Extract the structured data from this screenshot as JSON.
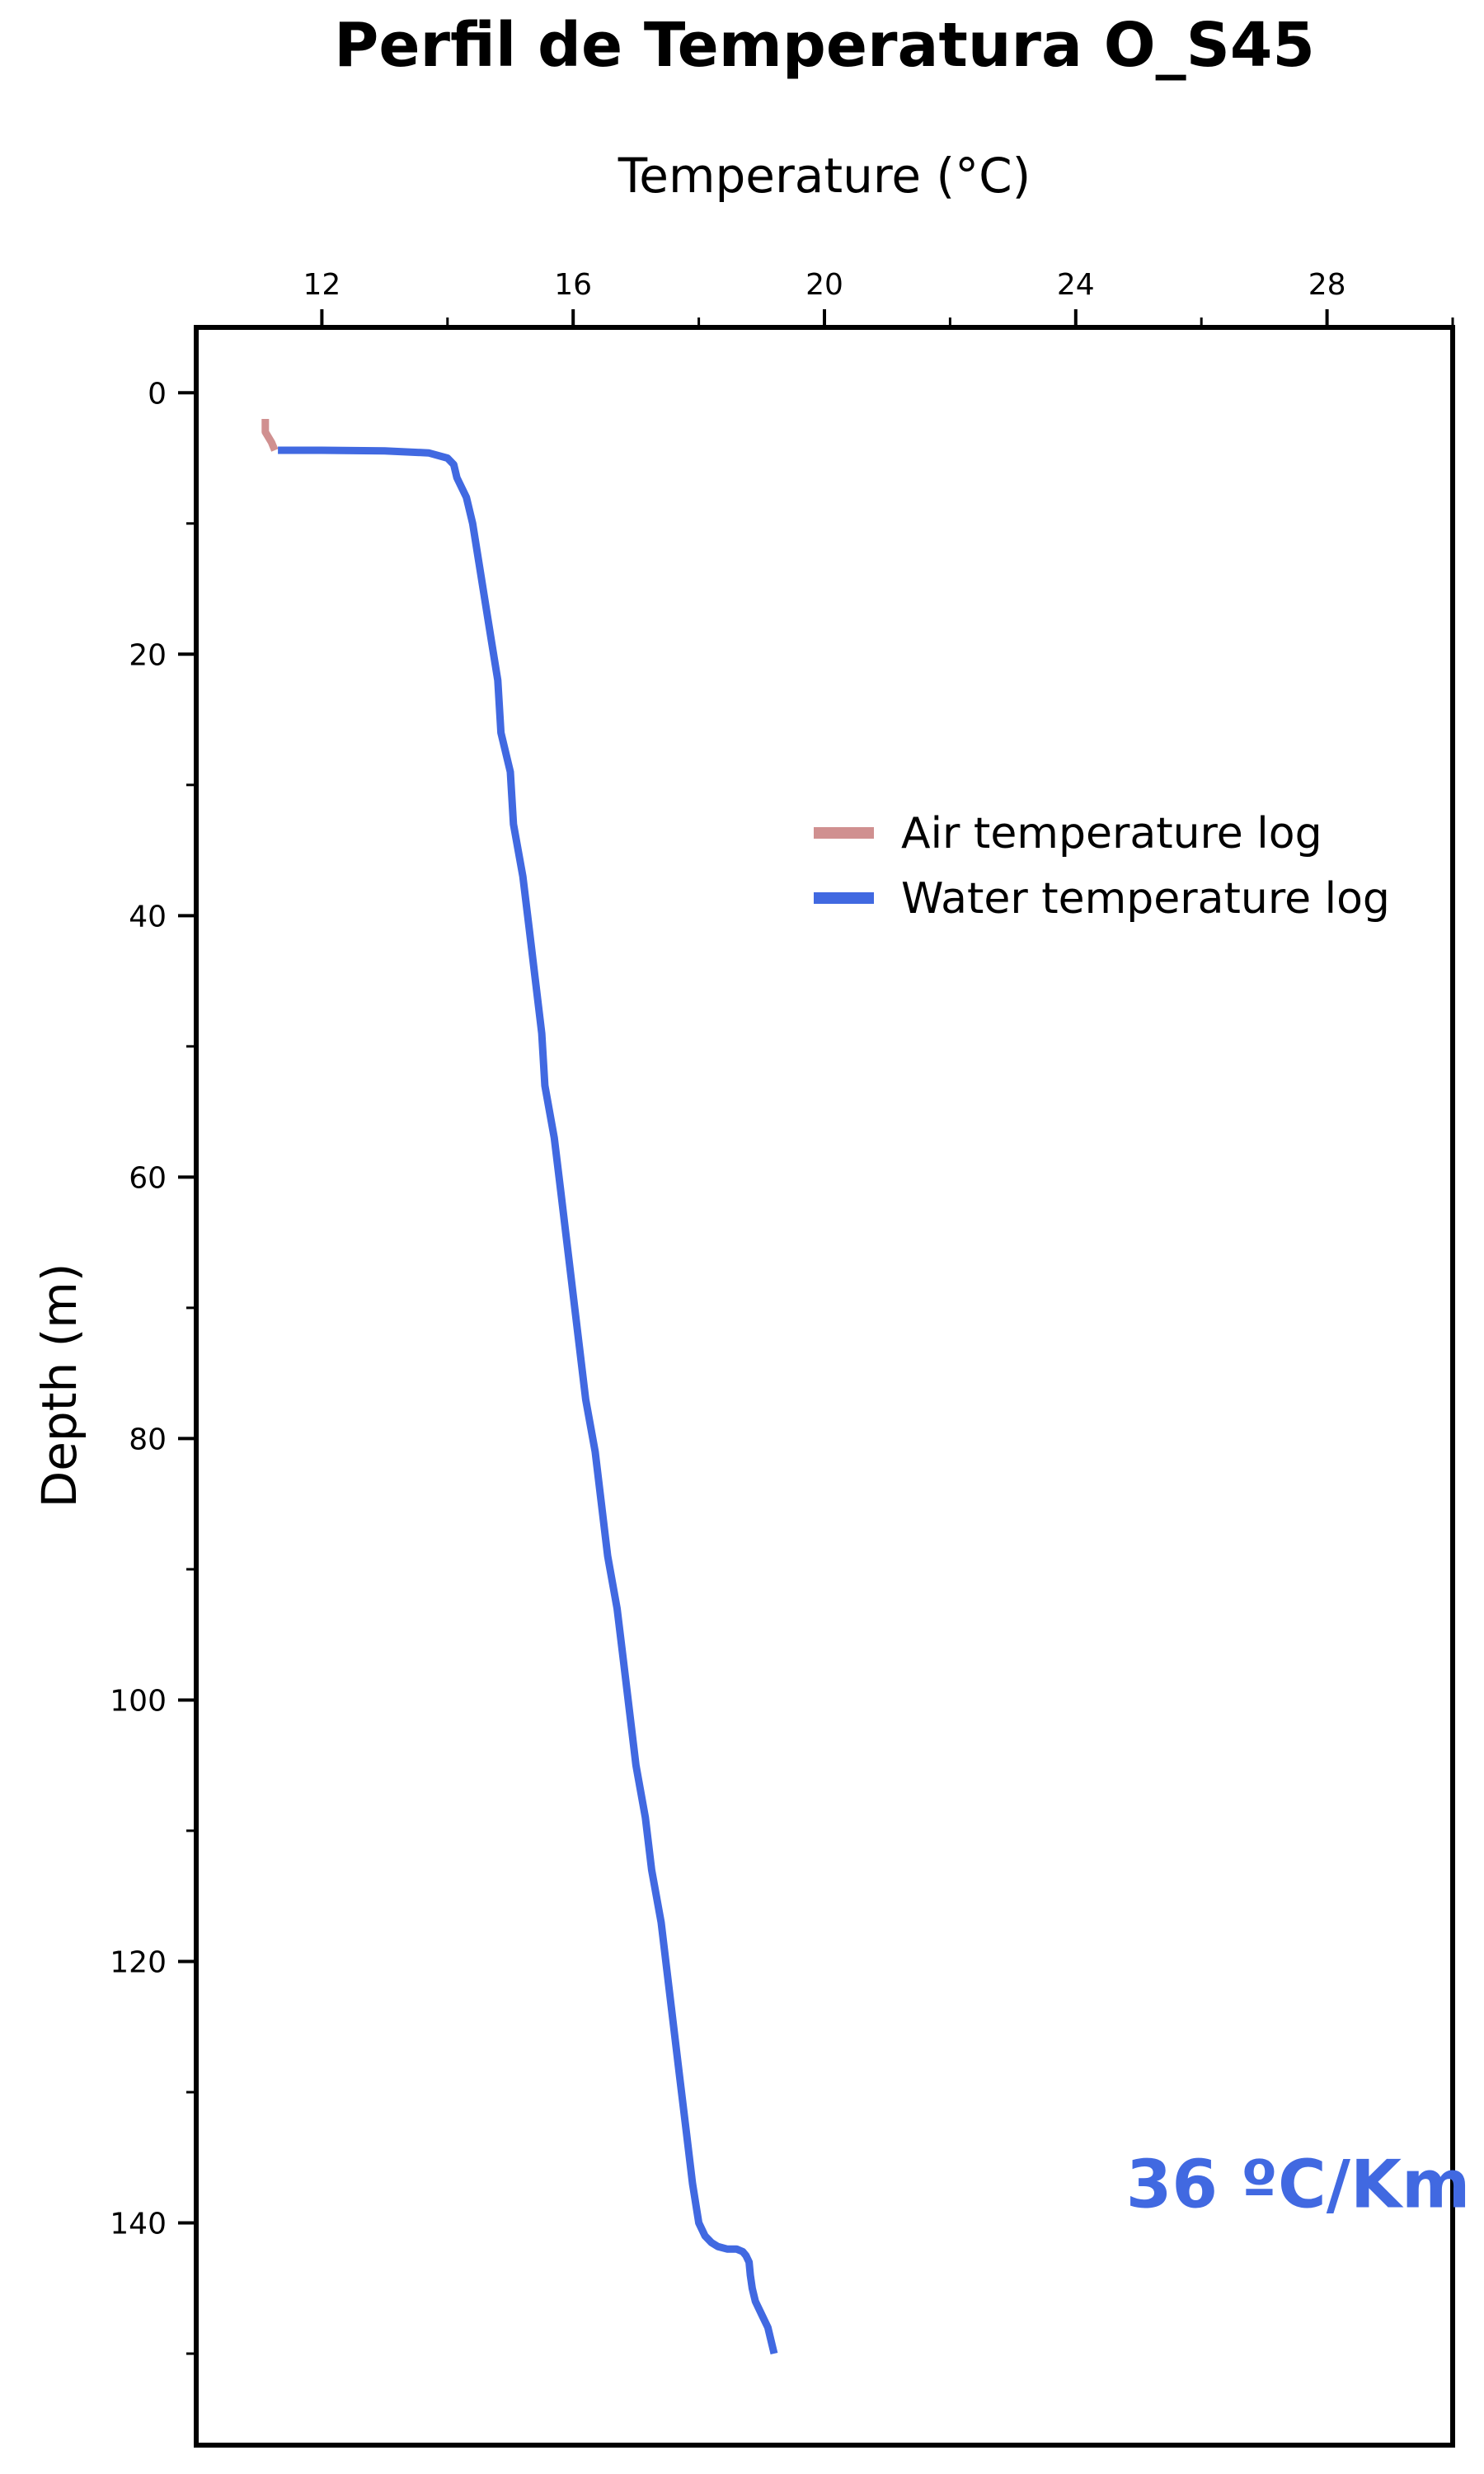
{
  "chart_data": {
    "type": "line",
    "title": "Perfil de Temperatura O_S45",
    "xlabel": "Temperature (°C)",
    "ylabel": "Depth (m)",
    "xlim": [
      10,
      30
    ],
    "ylim": [
      157,
      -5
    ],
    "y_inverted": true,
    "x_axis_position": "top",
    "xticks": [
      12,
      16,
      20,
      24,
      28
    ],
    "xticks_minor": [
      14,
      18,
      22,
      26,
      30
    ],
    "yticks": [
      0,
      20,
      40,
      60,
      80,
      100,
      120,
      140
    ],
    "yticks_minor": [
      10,
      30,
      50,
      70,
      90,
      110,
      130,
      150
    ],
    "grid": false,
    "legend_position": "upper-right",
    "annotation": {
      "text": "36 ºC/Km",
      "x": 24.8,
      "y": 138.8,
      "color": "#4169e1"
    },
    "series": [
      {
        "name": "Air temperature log",
        "color": "#d09090",
        "x": [
          11.1,
          11.1,
          11.2,
          11.25
        ],
        "y": [
          2.0,
          3.0,
          3.8,
          4.4
        ]
      },
      {
        "name": "Water temperature log",
        "color": "#4169e1",
        "x": [
          11.3,
          12.0,
          13.0,
          13.7,
          14.0,
          14.1,
          14.15,
          14.3,
          14.4,
          14.5,
          14.6,
          14.7,
          14.8,
          14.85,
          15.0,
          15.05,
          15.2,
          15.3,
          15.4,
          15.5,
          15.55,
          15.7,
          15.8,
          15.9,
          16.0,
          16.1,
          16.2,
          16.35,
          16.45,
          16.55,
          16.7,
          16.8,
          16.9,
          17.0,
          17.15,
          17.25,
          17.4,
          17.5,
          17.6,
          17.7,
          17.8,
          17.9,
          18.0,
          18.1,
          18.2,
          18.3,
          18.45,
          18.6,
          18.7,
          18.75,
          18.8,
          18.82,
          18.85,
          18.9,
          19.0,
          19.1,
          19.15,
          19.2
        ],
        "y": [
          4.4,
          4.4,
          4.45,
          4.6,
          5.0,
          5.5,
          6.5,
          8.0,
          10.0,
          13.0,
          16.0,
          19.0,
          22.0,
          26.0,
          29.0,
          33.0,
          37.0,
          41.0,
          45.0,
          49.0,
          53.0,
          57.0,
          61.0,
          65.0,
          69.0,
          73.0,
          77.0,
          81.0,
          85.0,
          89.0,
          93.0,
          97.0,
          101.0,
          105.0,
          109.0,
          113.0,
          117.0,
          121.0,
          125.0,
          129.0,
          133.0,
          137.0,
          140.0,
          141.0,
          141.5,
          141.8,
          142.0,
          142.0,
          142.2,
          142.5,
          143.0,
          144.0,
          145.0,
          146.0,
          147.0,
          148.0,
          149.0,
          150.0
        ]
      }
    ]
  }
}
